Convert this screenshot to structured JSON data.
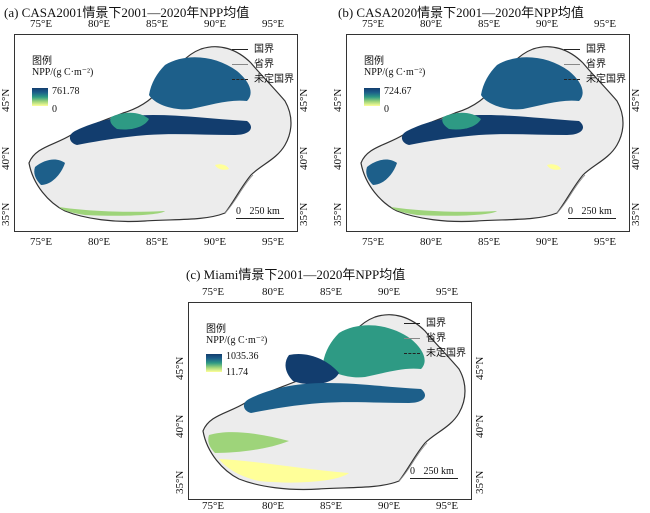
{
  "panels": [
    {
      "id": "a",
      "title": "(a) CASA2001情景下2001—2020年NPP均值",
      "legend_title": "图例",
      "unit": "NPP/(g C·m⁻²)",
      "max": "761.78",
      "min": "0",
      "colormap": [
        "#ffff99",
        "#9ed47a",
        "#2e9a84",
        "#1d5f8a",
        "#123d6e"
      ]
    },
    {
      "id": "b",
      "title": "(b) CASA2020情景下2001—2020年NPP均值",
      "legend_title": "图例",
      "unit": "NPP/(g C·m⁻²)",
      "max": "724.67",
      "min": "0",
      "colormap": [
        "#ffff99",
        "#9ed47a",
        "#2e9a84",
        "#1d5f8a",
        "#123d6e"
      ]
    },
    {
      "id": "c",
      "title": "(c) Miami情景下2001—2020年NPP均值",
      "legend_title": "图例",
      "unit": "NPP/(g C·m⁻²)",
      "max": "1035.36",
      "min": "11.74",
      "colormap": [
        "#ffff99",
        "#9ed47a",
        "#2e9a84",
        "#1d5f8a",
        "#123d6e"
      ]
    }
  ],
  "boundary_legend": {
    "national": "国界",
    "provincial": "省界",
    "undefined": "未定国界"
  },
  "lon_ticks": [
    "75°E",
    "80°E",
    "85°E",
    "90°E",
    "95°E"
  ],
  "lat_ticks": [
    "45°N",
    "40°N",
    "35°N"
  ],
  "scale_bar": {
    "start": "0",
    "end": "250 km"
  },
  "colors": {
    "background_land": "#ececec",
    "outline": "#333333"
  }
}
